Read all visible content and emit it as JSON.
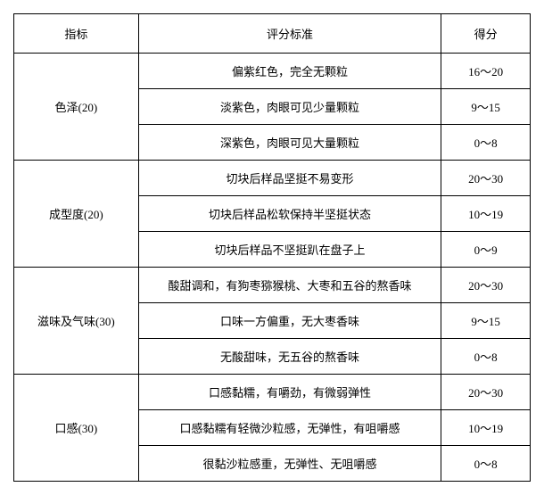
{
  "headers": {
    "indicator": "指标",
    "criteria": "评分标准",
    "score": "得分"
  },
  "rows": [
    {
      "indicator": "色泽(20)",
      "criteria_list": [
        {
          "text": "偏紫红色，完全无颗粒",
          "score": "16～20"
        },
        {
          "text": "淡紫色，肉眼可见少量颗粒",
          "score": "9～15"
        },
        {
          "text": "深紫色，肉眼可见大量颗粒",
          "score": "0～8"
        }
      ]
    },
    {
      "indicator": "成型度(20)",
      "criteria_list": [
        {
          "text": "切块后样品坚挺不易变形",
          "score": "20～30"
        },
        {
          "text": "切块后样品松软保持半坚挺状态",
          "score": "10～19"
        },
        {
          "text": "切块后样品不坚挺趴在盘子上",
          "score": "0～9"
        }
      ]
    },
    {
      "indicator": "滋味及气味(30)",
      "criteria_list": [
        {
          "text": "酸甜调和，有狗枣猕猴桃、大枣和五谷的熬香味",
          "score": "20～30"
        },
        {
          "text": "口味一方偏重，无大枣香味",
          "score": "9～15"
        },
        {
          "text": "无酸甜味，无五谷的熬香味",
          "score": "0～8"
        }
      ]
    },
    {
      "indicator": "口感(30)",
      "criteria_list": [
        {
          "text": "口感黏糯，有嚼劲，有微弱弹性",
          "score": "20～30"
        },
        {
          "text": "口感黏糯有轻微沙粒感，无弹性，有咀嚼感",
          "score": "10～19"
        },
        {
          "text": "很黏沙粒感重，无弹性、无咀嚼感",
          "score": "0～8"
        }
      ]
    }
  ]
}
